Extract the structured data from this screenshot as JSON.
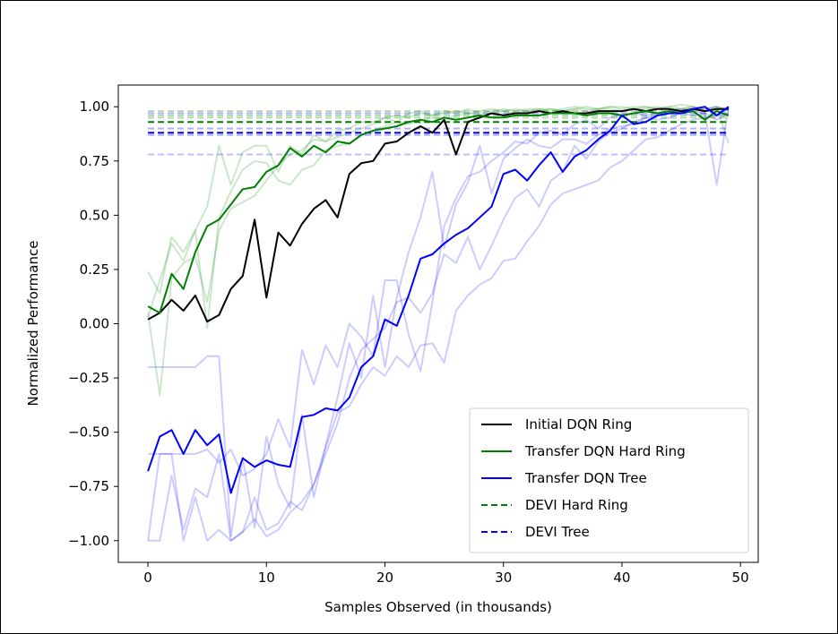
{
  "chart_data": {
    "type": "line",
    "title": "",
    "xlabel": "Samples Observed (in thousands)",
    "ylabel": "Normalized Performance",
    "xlim": [
      -2.5,
      51.5
    ],
    "ylim": [
      -1.1,
      1.1
    ],
    "xticks": [
      0,
      10,
      20,
      30,
      40,
      50
    ],
    "xtick_labels": [
      "0",
      "10",
      "20",
      "30",
      "40",
      "50"
    ],
    "yticks": [
      1.0,
      0.75,
      0.5,
      0.25,
      0.0,
      -0.25,
      -0.5,
      -0.75,
      -1.0
    ],
    "ytick_labels": [
      "1.00",
      "0.75",
      "0.50",
      "0.25",
      "0.00",
      "−0.25",
      "−0.50",
      "−0.75",
      "−1.00"
    ],
    "grid": false,
    "legend_position": "lower-right",
    "series": [
      {
        "name": "Initial DQN Ring",
        "color": "#000000",
        "style": "solid",
        "x": [
          0,
          1,
          2,
          3,
          4,
          5,
          6,
          7,
          8,
          9,
          10,
          11,
          12,
          13,
          14,
          15,
          16,
          17,
          18,
          19,
          20,
          21,
          22,
          23,
          24,
          25,
          26,
          27,
          28,
          29,
          30,
          31,
          32,
          33,
          34,
          35,
          36,
          37,
          38,
          39,
          40,
          41,
          42,
          43,
          44,
          45,
          46,
          47,
          48,
          49
        ],
        "values": [
          0.02,
          0.05,
          0.11,
          0.06,
          0.13,
          0.01,
          0.04,
          0.16,
          0.22,
          0.48,
          0.12,
          0.42,
          0.36,
          0.46,
          0.53,
          0.57,
          0.49,
          0.69,
          0.74,
          0.75,
          0.83,
          0.84,
          0.88,
          0.91,
          0.88,
          0.94,
          0.78,
          0.93,
          0.95,
          0.97,
          0.96,
          0.97,
          0.97,
          0.98,
          0.97,
          0.98,
          0.97,
          0.97,
          0.98,
          0.98,
          0.98,
          0.99,
          0.98,
          0.99,
          0.99,
          0.98,
          0.99,
          0.98,
          0.99,
          0.99
        ]
      },
      {
        "name": "Transfer DQN Hard Ring",
        "color": "#008000",
        "style": "solid",
        "x": [
          0,
          1,
          2,
          3,
          4,
          5,
          6,
          7,
          8,
          9,
          10,
          11,
          12,
          13,
          14,
          15,
          16,
          17,
          18,
          19,
          20,
          21,
          22,
          23,
          24,
          25,
          26,
          27,
          28,
          29,
          30,
          31,
          32,
          33,
          34,
          35,
          36,
          37,
          38,
          39,
          40,
          41,
          42,
          43,
          44,
          45,
          46,
          47,
          48,
          49
        ],
        "values": [
          0.08,
          0.05,
          0.23,
          0.16,
          0.33,
          0.45,
          0.48,
          0.55,
          0.62,
          0.63,
          0.7,
          0.73,
          0.81,
          0.77,
          0.82,
          0.79,
          0.84,
          0.83,
          0.87,
          0.89,
          0.9,
          0.91,
          0.93,
          0.94,
          0.93,
          0.95,
          0.94,
          0.95,
          0.96,
          0.95,
          0.95,
          0.96,
          0.96,
          0.96,
          0.97,
          0.97,
          0.97,
          0.96,
          0.97,
          0.97,
          0.96,
          0.97,
          0.98,
          0.97,
          0.98,
          0.97,
          0.98,
          0.94,
          0.98,
          0.96
        ]
      },
      {
        "name": "Transfer DQN Tree",
        "color": "#0000ff",
        "style": "solid",
        "x": [
          0,
          1,
          2,
          3,
          4,
          5,
          6,
          7,
          8,
          9,
          10,
          11,
          12,
          13,
          14,
          15,
          16,
          17,
          18,
          19,
          20,
          21,
          22,
          23,
          24,
          25,
          26,
          27,
          28,
          29,
          30,
          31,
          32,
          33,
          34,
          35,
          36,
          37,
          38,
          39,
          40,
          41,
          42,
          43,
          44,
          45,
          46,
          47,
          48,
          49
        ],
        "values": [
          -0.68,
          -0.52,
          -0.49,
          -0.6,
          -0.49,
          -0.56,
          -0.51,
          -0.78,
          -0.62,
          -0.66,
          -0.63,
          -0.65,
          -0.66,
          -0.43,
          -0.42,
          -0.39,
          -0.4,
          -0.34,
          -0.2,
          -0.15,
          0.02,
          -0.01,
          0.13,
          0.3,
          0.32,
          0.37,
          0.41,
          0.44,
          0.49,
          0.54,
          0.69,
          0.71,
          0.66,
          0.73,
          0.79,
          0.7,
          0.77,
          0.8,
          0.85,
          0.89,
          0.96,
          0.92,
          0.93,
          0.96,
          0.97,
          0.97,
          0.99,
          1.0,
          0.96,
          1.0
        ]
      },
      {
        "name": "DEVI Hard Ring",
        "color": "#008000",
        "style": "dashed",
        "x": [
          0,
          49
        ],
        "values": [
          0.93,
          0.93
        ]
      },
      {
        "name": "DEVI Tree",
        "color": "#0000ff",
        "style": "dashed",
        "x": [
          0,
          49
        ],
        "values": [
          0.88,
          0.88
        ]
      }
    ],
    "faded_runs": [
      {
        "color": "#008000",
        "opacity": 0.2,
        "x": [
          0,
          1,
          2,
          3,
          4,
          5,
          6,
          7,
          8,
          9,
          10,
          11,
          12,
          13,
          14,
          15,
          16,
          17,
          18,
          19,
          20,
          21,
          22,
          23,
          24,
          25,
          26,
          27,
          28,
          29,
          30,
          31,
          32,
          33,
          34,
          35,
          36,
          37,
          38,
          39,
          40,
          41,
          42,
          43,
          44,
          45,
          46,
          47,
          48,
          49
        ],
        "values": [
          0.24,
          0.14,
          0.4,
          0.33,
          0.43,
          0.54,
          0.82,
          0.64,
          0.79,
          0.82,
          0.82,
          0.7,
          0.82,
          0.78,
          0.87,
          0.84,
          0.89,
          0.9,
          0.93,
          0.93,
          0.95,
          0.96,
          0.95,
          0.97,
          0.96,
          0.98,
          0.97,
          0.99,
          0.97,
          0.98,
          0.99,
          0.98,
          0.99,
          0.99,
          0.98,
          0.99,
          1.0,
          0.99,
          0.99,
          1.0,
          1.0,
          0.99,
          1.0,
          0.99,
          1.0,
          1.01,
          1.0,
          0.99,
          1.0,
          0.83
        ]
      },
      {
        "color": "#008000",
        "opacity": 0.2,
        "x": [
          0,
          1,
          2,
          3,
          4,
          5,
          6,
          7,
          8,
          9,
          10,
          11,
          12,
          13,
          14,
          15,
          16,
          17,
          18,
          19,
          20,
          21,
          22,
          23,
          24,
          25,
          26,
          27,
          28,
          29,
          30,
          31,
          32,
          33,
          34,
          35,
          36,
          37,
          38,
          39,
          40,
          41,
          42,
          43,
          44,
          45,
          46,
          47,
          48,
          49
        ],
        "values": [
          0.05,
          -0.33,
          0.21,
          0.28,
          0.31,
          0.1,
          0.43,
          0.53,
          0.56,
          0.59,
          0.66,
          0.73,
          0.78,
          0.8,
          0.85,
          0.84,
          0.86,
          0.88,
          0.9,
          0.92,
          0.95,
          0.93,
          0.97,
          0.98,
          0.96,
          0.97,
          0.98,
          0.97,
          0.98,
          0.99,
          0.98,
          0.99,
          0.98,
          0.99,
          0.99,
          0.98,
          0.99,
          1.0,
          0.99,
          1.0,
          0.99,
          1.0,
          1.0,
          0.99,
          1.0,
          0.99,
          1.0,
          0.98,
          1.0,
          0.99
        ]
      },
      {
        "color": "#008000",
        "opacity": 0.2,
        "x": [
          0,
          1,
          2,
          3,
          4,
          5,
          6,
          7,
          8,
          9,
          10,
          11,
          12,
          13,
          14,
          15,
          16,
          17,
          18,
          19,
          20,
          21,
          22,
          23,
          24,
          25,
          26,
          27,
          28,
          29,
          30,
          31,
          32,
          33,
          34,
          35,
          36,
          37,
          38,
          39,
          40,
          41,
          42,
          43,
          44,
          45,
          46,
          47,
          48,
          49
        ],
        "values": [
          0.03,
          0.2,
          0.37,
          0.29,
          0.43,
          -0.02,
          0.49,
          0.61,
          0.71,
          0.75,
          0.74,
          0.66,
          0.64,
          0.71,
          0.73,
          0.8,
          0.82,
          0.83,
          0.87,
          0.89,
          0.91,
          0.93,
          0.92,
          0.94,
          0.95,
          0.94,
          0.96,
          0.97,
          0.96,
          0.97,
          0.98,
          0.97,
          0.98,
          0.98,
          0.99,
          0.98,
          0.99,
          0.98,
          0.99,
          0.99,
          0.98,
          0.99,
          0.99,
          1.0,
          0.99,
          0.99,
          1.0,
          0.98,
          0.99,
          0.99
        ]
      },
      {
        "color": "#0000ff",
        "opacity": 0.2,
        "x": [
          0,
          1,
          2,
          3,
          4,
          5,
          6,
          7,
          8,
          9,
          10,
          11,
          12,
          13,
          14,
          15,
          16,
          17,
          18,
          19,
          20,
          21,
          22,
          23,
          24,
          25,
          26,
          27,
          28,
          29,
          30,
          31,
          32,
          33,
          34,
          35,
          36,
          37,
          38,
          39,
          40,
          41,
          42,
          43,
          44,
          45,
          46,
          47,
          48,
          49
        ],
        "values": [
          -0.2,
          -0.2,
          -0.2,
          -0.2,
          -0.2,
          -0.15,
          -0.15,
          -0.98,
          -0.62,
          -0.94,
          -0.52,
          -0.74,
          -0.85,
          -0.42,
          -0.8,
          -0.56,
          -0.34,
          -0.09,
          -0.25,
          0.13,
          -0.2,
          0.12,
          0.33,
          0.49,
          0.7,
          0.35,
          0.55,
          0.65,
          0.82,
          0.6,
          0.76,
          0.81,
          0.85,
          0.82,
          0.81,
          0.85,
          0.85,
          0.83,
          0.87,
          0.9,
          0.91,
          0.92,
          0.95,
          0.94,
          0.95,
          0.97,
          0.96,
          0.97,
          0.94,
          0.97
        ]
      },
      {
        "color": "#0000ff",
        "opacity": 0.2,
        "x": [
          0,
          1,
          2,
          3,
          4,
          5,
          6,
          7,
          8,
          9,
          10,
          11,
          12,
          13,
          14,
          15,
          16,
          17,
          18,
          19,
          20,
          21,
          22,
          23,
          24,
          25,
          26,
          27,
          28,
          29,
          30,
          31,
          32,
          33,
          34,
          35,
          36,
          37,
          38,
          39,
          40,
          41,
          42,
          43,
          44,
          45,
          46,
          47,
          48,
          49
        ],
        "values": [
          -0.6,
          -0.6,
          -0.6,
          -0.6,
          -0.6,
          -0.58,
          -0.64,
          -0.58,
          -0.7,
          -0.67,
          -0.6,
          -0.44,
          -0.57,
          -0.12,
          -0.28,
          -0.1,
          -0.2,
          0.0,
          -0.06,
          -0.15,
          0.2,
          0.2,
          -0.05,
          -0.22,
          0.1,
          0.45,
          0.58,
          0.68,
          0.7,
          0.75,
          0.79,
          0.84,
          0.83,
          0.88,
          0.89,
          0.87,
          0.92,
          0.94,
          0.9,
          0.95,
          0.96,
          0.97,
          0.96,
          0.97,
          0.98,
          0.99,
          0.98,
          0.97,
          0.64,
          1.0
        ]
      },
      {
        "color": "#0000ff",
        "opacity": 0.2,
        "x": [
          0,
          1,
          2,
          3,
          4,
          5,
          6,
          7,
          8,
          9,
          10,
          11,
          12,
          13,
          14,
          15,
          16,
          17,
          18,
          19,
          20,
          21,
          22,
          23,
          24,
          25,
          26,
          27,
          28,
          29,
          30,
          31,
          32,
          33,
          34,
          35,
          36,
          37,
          38,
          39,
          40,
          41,
          42,
          43,
          44,
          45,
          46,
          47,
          48,
          49
        ],
        "values": [
          -1.0,
          -0.6,
          -0.6,
          -1.0,
          -0.8,
          -1.0,
          -0.95,
          -1.0,
          -0.96,
          -0.9,
          -0.98,
          -0.95,
          -0.87,
          -0.82,
          -0.74,
          -0.57,
          -0.41,
          -0.38,
          -0.28,
          -0.2,
          -0.24,
          -0.15,
          -0.2,
          -0.1,
          -0.09,
          -0.18,
          0.06,
          0.13,
          0.18,
          0.21,
          0.29,
          0.3,
          0.38,
          0.45,
          0.55,
          0.6,
          0.62,
          0.64,
          0.66,
          0.72,
          0.75,
          0.8,
          0.85,
          0.86,
          0.89,
          0.92,
          0.94,
          0.95,
          0.96,
          0.97
        ]
      },
      {
        "color": "#0000ff",
        "opacity": 0.2,
        "x": [
          0,
          1,
          2,
          3,
          4,
          5,
          6,
          7,
          8,
          9,
          10,
          11,
          12,
          13,
          14,
          15,
          16,
          17,
          18,
          19,
          20,
          21,
          22,
          23,
          24,
          25,
          26,
          27,
          28,
          29,
          30,
          31,
          32,
          33,
          34,
          35,
          36,
          37,
          38,
          39,
          40,
          41,
          42,
          43,
          44,
          45,
          46,
          47,
          48,
          49
        ],
        "values": [
          -1.0,
          -1.0,
          -0.7,
          -0.95,
          -0.76,
          -0.8,
          -0.6,
          -1.0,
          -0.96,
          -0.8,
          -0.95,
          -0.92,
          -0.82,
          -0.86,
          -0.74,
          -0.6,
          -0.46,
          -0.25,
          -0.12,
          -0.07,
          -0.02,
          0.1,
          0.12,
          0.05,
          0.14,
          0.32,
          0.28,
          0.4,
          0.25,
          0.36,
          0.48,
          0.58,
          0.62,
          0.54,
          0.66,
          0.7,
          0.82,
          0.76,
          0.84,
          0.88,
          0.9,
          0.93,
          0.95,
          0.96,
          0.97,
          0.98,
          0.99,
          0.99,
          1.0,
          0.98
        ]
      }
    ],
    "faded_refs": [
      {
        "color": "#008000",
        "opacity": 0.3,
        "value": 0.98
      },
      {
        "color": "#008000",
        "opacity": 0.3,
        "value": 0.96
      },
      {
        "color": "#008000",
        "opacity": 0.3,
        "value": 0.95
      },
      {
        "color": "#0000ff",
        "opacity": 0.3,
        "value": 0.97
      },
      {
        "color": "#0000ff",
        "opacity": 0.3,
        "value": 0.9
      },
      {
        "color": "#0000ff",
        "opacity": 0.3,
        "value": 0.87
      },
      {
        "color": "#0000ff",
        "opacity": 0.25,
        "value": 0.78
      }
    ]
  }
}
